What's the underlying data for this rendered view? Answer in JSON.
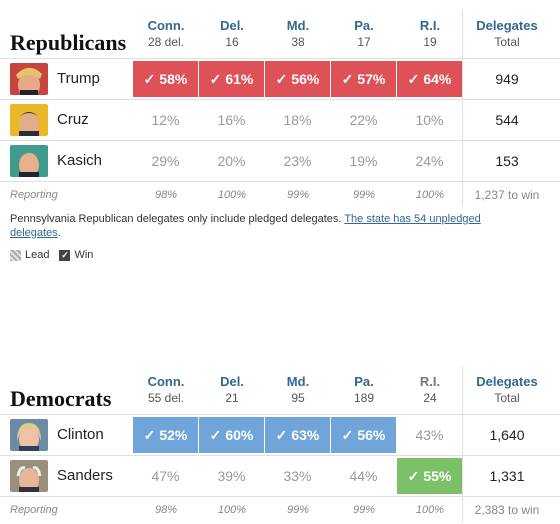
{
  "republicans": {
    "title": "Republicans",
    "states": [
      {
        "name": "Conn.",
        "delegates": "28 del."
      },
      {
        "name": "Del.",
        "delegates": "16"
      },
      {
        "name": "Md.",
        "delegates": "38"
      },
      {
        "name": "Pa.",
        "delegates": "17"
      },
      {
        "name": "R.I.",
        "delegates": "19"
      }
    ],
    "total_header": "Delegates",
    "total_sub": "Total",
    "candidates": [
      {
        "name": "Trump",
        "results": [
          "58%",
          "61%",
          "56%",
          "57%",
          "64%"
        ],
        "wins": [
          true,
          true,
          true,
          true,
          true
        ],
        "total": "949"
      },
      {
        "name": "Cruz",
        "results": [
          "12%",
          "16%",
          "18%",
          "22%",
          "10%"
        ],
        "wins": [
          false,
          false,
          false,
          false,
          false
        ],
        "total": "544"
      },
      {
        "name": "Kasich",
        "results": [
          "29%",
          "20%",
          "23%",
          "19%",
          "24%"
        ],
        "wins": [
          false,
          false,
          false,
          false,
          false
        ],
        "total": "153"
      }
    ],
    "reporting_label": "Reporting",
    "reporting": [
      "98%",
      "100%",
      "99%",
      "99%",
      "100%"
    ],
    "to_win": "1,237 to win"
  },
  "note": {
    "text": "Pennsylvania Republican delegates only include pledged delegates. ",
    "link": "The state has 54 unpledged delegates",
    "end": "."
  },
  "legend": {
    "lead": "Lead",
    "win": "Win",
    "check": "✓"
  },
  "democrats": {
    "title": "Democrats",
    "states": [
      {
        "name": "Conn.",
        "delegates": "55 del."
      },
      {
        "name": "Del.",
        "delegates": "21"
      },
      {
        "name": "Md.",
        "delegates": "95"
      },
      {
        "name": "Pa.",
        "delegates": "189"
      },
      {
        "name": "R.I.",
        "delegates": "24"
      }
    ],
    "total_header": "Delegates",
    "total_sub": "Total",
    "candidates": [
      {
        "name": "Clinton",
        "results": [
          "52%",
          "60%",
          "63%",
          "56%",
          "43%"
        ],
        "wins": [
          true,
          true,
          true,
          true,
          false
        ],
        "total": "1,640"
      },
      {
        "name": "Sanders",
        "results": [
          "47%",
          "39%",
          "33%",
          "44%",
          "55%"
        ],
        "wins": [
          false,
          false,
          false,
          false,
          true
        ],
        "total": "1,331"
      }
    ],
    "reporting_label": "Reporting",
    "reporting": [
      "98%",
      "100%",
      "99%",
      "99%",
      "100%"
    ],
    "to_win": "2,383 to win"
  },
  "colors": {
    "rep_win": "#dd5157",
    "dem_win": "#6fa5d8",
    "sanders_win": "#7dc06a",
    "header_blue": "#326891"
  }
}
